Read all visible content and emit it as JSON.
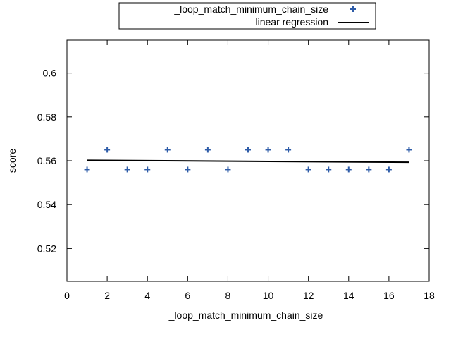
{
  "chart_data": {
    "type": "scatter",
    "title": "",
    "xlabel": "_loop_match_minimum_chain_size",
    "ylabel": "score",
    "xlim": [
      0,
      18
    ],
    "ylim": [
      0.505,
      0.615
    ],
    "xticks": [
      "0",
      "2",
      "4",
      "6",
      "8",
      "10",
      "12",
      "14",
      "16",
      "18"
    ],
    "yticks": [
      "0.52",
      "0.54",
      "0.56",
      "0.58",
      "0.6"
    ],
    "grid": false,
    "legend_position": "top-center",
    "series": [
      {
        "name": "_loop_match_minimum_chain_size",
        "marker": "plus",
        "color": "#2e5ca8",
        "x": [
          1,
          2,
          3,
          4,
          5,
          6,
          7,
          8,
          9,
          10,
          11,
          12,
          13,
          14,
          15,
          16,
          17
        ],
        "y": [
          0.556,
          0.565,
          0.556,
          0.556,
          0.565,
          0.556,
          0.565,
          0.556,
          0.565,
          0.565,
          0.565,
          0.556,
          0.556,
          0.556,
          0.556,
          0.556,
          0.565
        ]
      },
      {
        "name": "linear regression",
        "type": "line",
        "color": "#000000",
        "x": [
          1,
          17
        ],
        "y": [
          0.5602,
          0.5593
        ]
      }
    ]
  }
}
